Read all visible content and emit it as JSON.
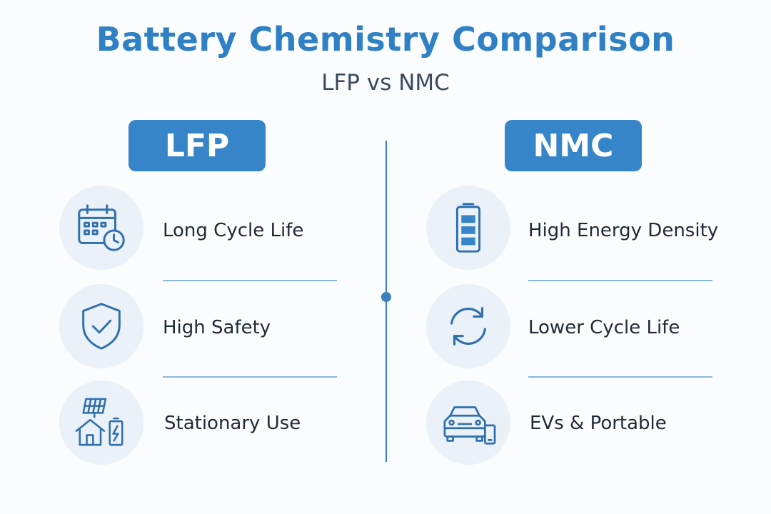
{
  "header": {
    "title": "Battery Chemistry Comparison",
    "subtitle": "LFP vs NMC"
  },
  "left": {
    "badge": "LFP",
    "features": [
      {
        "label": "Long Cycle Life",
        "icon": "calendar-clock-icon"
      },
      {
        "label": "High Safety",
        "icon": "shield-check-icon"
      },
      {
        "label": "Stationary Use",
        "icon": "solar-house-battery-icon"
      }
    ]
  },
  "right": {
    "badge": "NMC",
    "features": [
      {
        "label": "High Energy Density",
        "icon": "battery-full-icon"
      },
      {
        "label": "Lower Cycle Life",
        "icon": "refresh-cycle-icon"
      },
      {
        "label": "EVs & Portable",
        "icon": "car-phone-icon"
      }
    ]
  },
  "colors": {
    "accent": "#2f80c4",
    "badge": "#3585c8",
    "icon_bg": "#eaf1f8",
    "icon_stroke": "#2f6fad"
  }
}
